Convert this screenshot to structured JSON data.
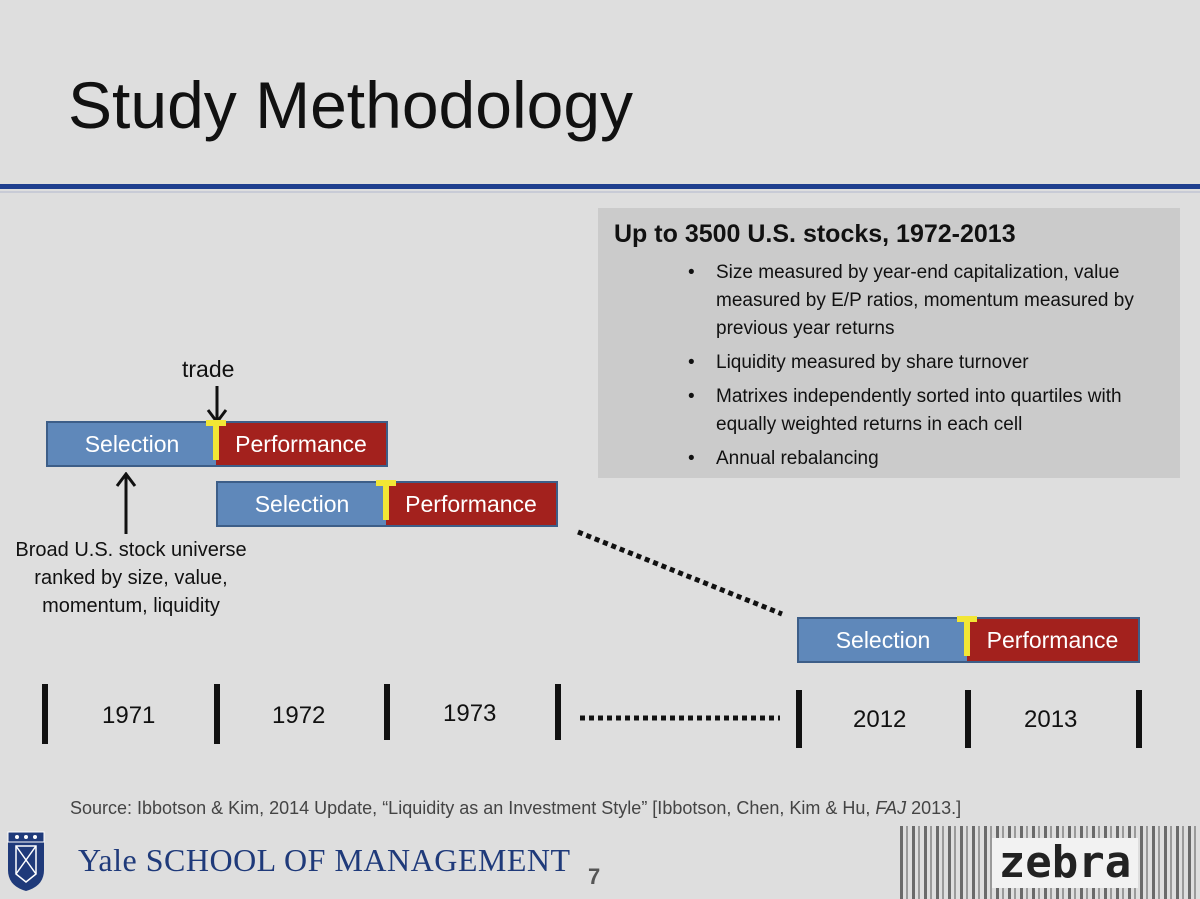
{
  "slide": {
    "title": "Study Methodology",
    "page_number": "7"
  },
  "infobox": {
    "heading": "Up to 3500 U.S. stocks, 1972-2013",
    "bullets": [
      "Size measured by year-end capitalization, value measured by E/P ratios, momentum measured by previous year returns",
      "Liquidity measured by share turnover",
      "Matrixes independently sorted into quartiles with equally weighted returns in each cell",
      "Annual rebalancing"
    ],
    "bullet_glyph": "•"
  },
  "diagram": {
    "trade_label": "trade",
    "selection_label": "Selection",
    "performance_label": "Performance",
    "caption": "Broad U.S. stock universe ranked by size, value, momentum, liquidity",
    "years": [
      "1971",
      "1972",
      "1973",
      "2012",
      "2013"
    ],
    "colors": {
      "selection": "#5f88ba",
      "performance": "#a3211d",
      "trade_marker": "#f2e635"
    }
  },
  "footer": {
    "source_prefix": "Source: Ibbotson & Kim, 2014 Update, “Liquidity as an Investment Style” [Ibbotson, Chen, Kim & Hu, ",
    "source_journal": "FAJ",
    "source_suffix": " 2013.]",
    "school_name": "Yale SCHOOL OF MANAGEMENT",
    "partner_logo": "zebra"
  }
}
